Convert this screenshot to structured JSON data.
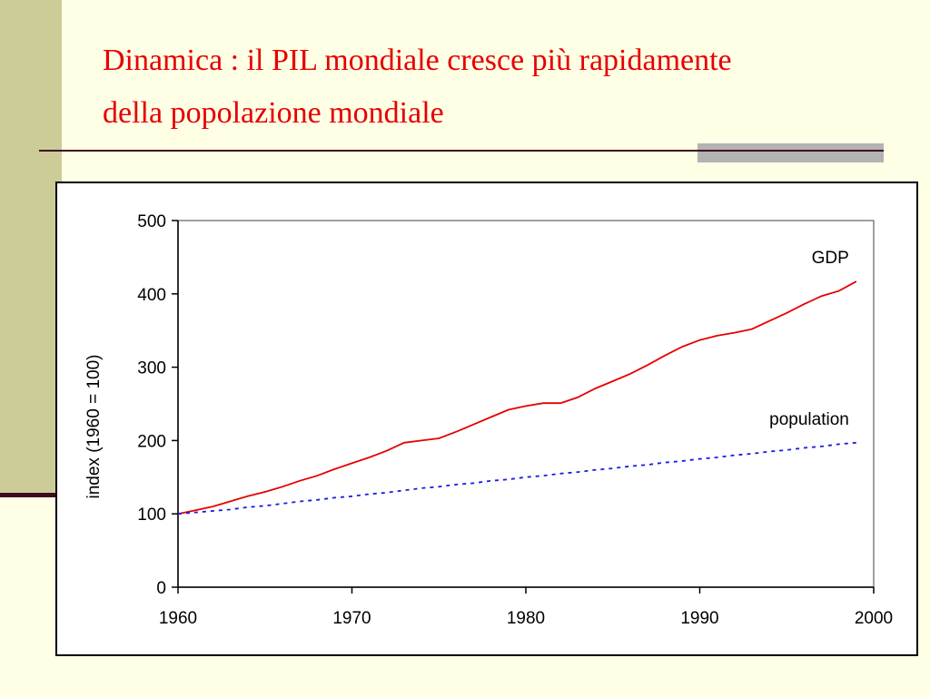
{
  "slide": {
    "title_line1": "Dinamica : il PIL mondiale cresce più rapidamente",
    "title_line2": "della popolazione mondiale"
  },
  "colors": {
    "background": "#ffffe5",
    "title": "#e60000",
    "gdp_line": "#e60000",
    "population_line": "#1a1ae6",
    "band": "#cccc99",
    "rule": "#3d0a22"
  },
  "chart_data": {
    "type": "line",
    "title": "",
    "xlabel": "",
    "ylabel": "index (1960 = 100)",
    "xlim": [
      1960,
      2000
    ],
    "ylim": [
      0,
      500
    ],
    "x_ticks": [
      1960,
      1970,
      1980,
      1990,
      2000
    ],
    "y_ticks": [
      0,
      100,
      200,
      300,
      400,
      500
    ],
    "grid": false,
    "x": [
      1960,
      1961,
      1962,
      1963,
      1964,
      1965,
      1966,
      1967,
      1968,
      1969,
      1970,
      1971,
      1972,
      1973,
      1974,
      1975,
      1976,
      1977,
      1978,
      1979,
      1980,
      1981,
      1982,
      1983,
      1984,
      1985,
      1986,
      1987,
      1988,
      1989,
      1990,
      1991,
      1992,
      1993,
      1994,
      1995,
      1996,
      1997,
      1998,
      1999
    ],
    "series": [
      {
        "name": "GDP",
        "style": "solid",
        "color": "#e60000",
        "values": [
          100,
          105,
          110,
          117,
          124,
          130,
          137,
          145,
          152,
          161,
          169,
          177,
          186,
          197,
          200,
          203,
          212,
          222,
          232,
          242,
          247,
          251,
          251,
          259,
          271,
          281,
          291,
          303,
          316,
          328,
          337,
          343,
          347,
          352,
          363,
          374,
          386,
          397,
          404,
          417
        ]
      },
      {
        "name": "population",
        "style": "dotted",
        "color": "#1a1ae6",
        "values": [
          100,
          102,
          104,
          106,
          109,
          111,
          114,
          117,
          119,
          122,
          124,
          127,
          129,
          132,
          135,
          137,
          140,
          142,
          145,
          147,
          150,
          152,
          155,
          157,
          160,
          162,
          165,
          167,
          170,
          172,
          175,
          177,
          180,
          182,
          185,
          187,
          190,
          192,
          195,
          197
        ]
      }
    ]
  }
}
